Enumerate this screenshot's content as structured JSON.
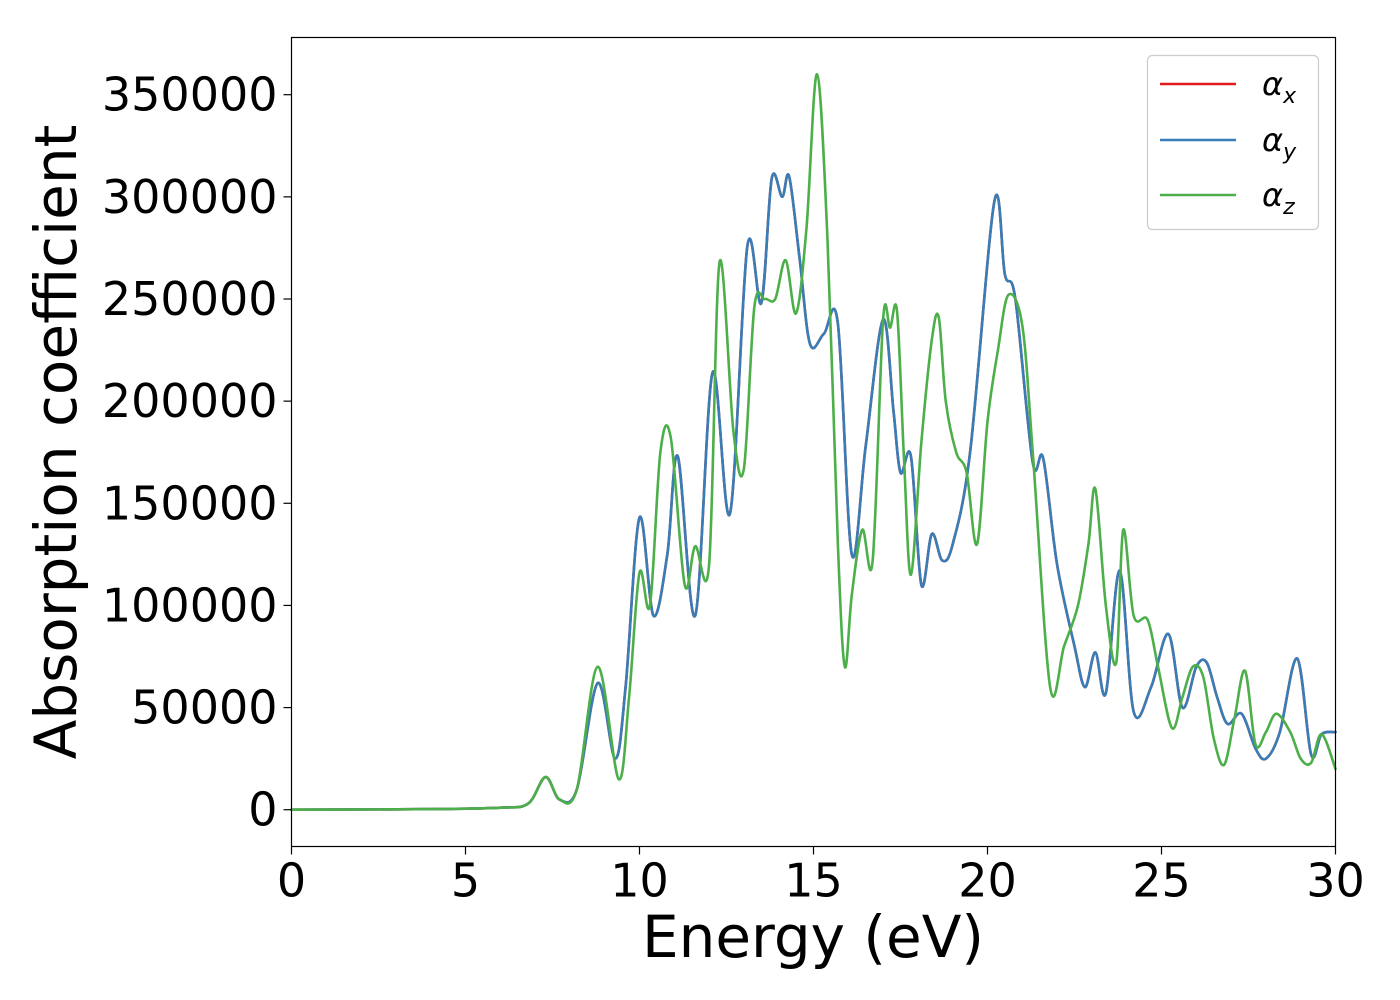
{
  "chart_data": {
    "type": "line",
    "title": "",
    "xlabel": "Energy (eV)",
    "ylabel": "Absorption coefficient",
    "xlim": [
      0,
      30
    ],
    "ylim": [
      -18000,
      378000
    ],
    "xticks": [
      0,
      5,
      10,
      15,
      20,
      25,
      30
    ],
    "xtick_labels": [
      "0",
      "5",
      "10",
      "15",
      "20",
      "25",
      "30"
    ],
    "yticks": [
      0,
      50000,
      100000,
      150000,
      200000,
      250000,
      300000,
      350000
    ],
    "ytick_labels": [
      "0",
      "50000",
      "100000",
      "150000",
      "200000",
      "250000",
      "300000",
      "350000"
    ],
    "grid": false,
    "legend_position": "top-right",
    "series": [
      {
        "name": "αx",
        "legend_base": "α",
        "legend_sub": "x",
        "color": "#e41a1c",
        "x": [
          0,
          4,
          6,
          6.8,
          7.3,
          7.7,
          8.2,
          8.8,
          9.3,
          9.6,
          10,
          10.4,
          10.8,
          11.1,
          11.6,
          12.1,
          12.6,
          13.1,
          13.5,
          13.8,
          14.1,
          14.3,
          14.6,
          14.9,
          15.3,
          15.7,
          16.1,
          16.5,
          17,
          17.3,
          17.5,
          17.8,
          18.1,
          18.4,
          18.7,
          19,
          19.5,
          20.2,
          20.5,
          20.8,
          21.3,
          21.6,
          22,
          22.5,
          22.8,
          23.1,
          23.4,
          23.8,
          24.2,
          24.7,
          25.2,
          25.6,
          26,
          26.3,
          26.6,
          26.9,
          27.3,
          27.7,
          28,
          28.4,
          28.9,
          29.3,
          29.6,
          30
        ],
        "values": [
          0,
          300,
          1000,
          3000,
          16000,
          5000,
          10000,
          62000,
          25000,
          60000,
          143000,
          95000,
          125000,
          173000,
          95000,
          214000,
          145000,
          276000,
          248000,
          309000,
          300000,
          310000,
          270000,
          228000,
          233000,
          238000,
          125000,
          178000,
          240000,
          195000,
          165000,
          173000,
          110000,
          135000,
          122000,
          130000,
          175000,
          298000,
          262000,
          250000,
          170000,
          172000,
          120000,
          80000,
          60000,
          77000,
          57000,
          117000,
          48000,
          60000,
          86000,
          50000,
          70000,
          72000,
          55000,
          42000,
          47000,
          30000,
          25000,
          38000,
          74000,
          27000,
          37000,
          38000
        ]
      },
      {
        "name": "αy",
        "legend_base": "α",
        "legend_sub": "y",
        "color": "#377eb8",
        "x": [
          0,
          4,
          6,
          6.8,
          7.3,
          7.7,
          8.2,
          8.8,
          9.3,
          9.6,
          10,
          10.4,
          10.8,
          11.1,
          11.6,
          12.1,
          12.6,
          13.1,
          13.5,
          13.8,
          14.1,
          14.3,
          14.6,
          14.9,
          15.3,
          15.7,
          16.1,
          16.5,
          17,
          17.3,
          17.5,
          17.8,
          18.1,
          18.4,
          18.7,
          19,
          19.5,
          20.2,
          20.5,
          20.8,
          21.3,
          21.6,
          22,
          22.5,
          22.8,
          23.1,
          23.4,
          23.8,
          24.2,
          24.7,
          25.2,
          25.6,
          26,
          26.3,
          26.6,
          26.9,
          27.3,
          27.7,
          28,
          28.4,
          28.9,
          29.3,
          29.6,
          30
        ],
        "values": [
          0,
          300,
          1000,
          3000,
          16000,
          5000,
          10000,
          62000,
          25000,
          60000,
          143000,
          95000,
          125000,
          173000,
          95000,
          214000,
          145000,
          276000,
          248000,
          309000,
          300000,
          310000,
          270000,
          228000,
          233000,
          238000,
          125000,
          178000,
          240000,
          195000,
          165000,
          173000,
          110000,
          135000,
          122000,
          130000,
          175000,
          298000,
          262000,
          250000,
          170000,
          172000,
          120000,
          80000,
          60000,
          77000,
          57000,
          117000,
          48000,
          60000,
          86000,
          50000,
          70000,
          72000,
          55000,
          42000,
          47000,
          30000,
          25000,
          38000,
          74000,
          27000,
          37000,
          38000
        ]
      },
      {
        "name": "αz",
        "legend_base": "α",
        "legend_sub": "z",
        "color": "#4daf4a",
        "x": [
          0,
          4,
          6,
          6.8,
          7.3,
          7.7,
          8.2,
          8.8,
          9.4,
          9.7,
          10,
          10.3,
          10.6,
          10.9,
          11.3,
          11.6,
          12,
          12.3,
          12.7,
          13,
          13.3,
          13.6,
          13.9,
          14.2,
          14.5,
          14.8,
          15.1,
          15.4,
          15.7,
          15.9,
          16.1,
          16.4,
          16.7,
          17,
          17.2,
          17.4,
          17.6,
          17.8,
          18.1,
          18.4,
          18.6,
          18.8,
          19.1,
          19.4,
          19.7,
          20,
          20.3,
          20.6,
          21,
          21.3,
          21.8,
          22.2,
          22.6,
          22.9,
          23.1,
          23.4,
          23.7,
          23.9,
          24.2,
          24.6,
          24.9,
          25.3,
          25.6,
          25.9,
          26.2,
          26.5,
          26.8,
          27.1,
          27.4,
          27.7,
          28,
          28.3,
          28.7,
          29,
          29.3,
          29.6,
          30
        ],
        "values": [
          0,
          300,
          1000,
          3000,
          16000,
          5000,
          10000,
          70000,
          15000,
          55000,
          116000,
          100000,
          175000,
          182000,
          110000,
          129000,
          120000,
          268000,
          185000,
          167000,
          246000,
          250000,
          250000,
          269000,
          243000,
          285000,
          360000,
          280000,
          130000,
          70000,
          105000,
          137000,
          122000,
          240000,
          236000,
          244000,
          172000,
          115000,
          180000,
          230000,
          241000,
          200000,
          175000,
          165000,
          130000,
          190000,
          225000,
          252000,
          237000,
          175000,
          60000,
          80000,
          100000,
          130000,
          157000,
          100000,
          72000,
          137000,
          95000,
          93000,
          70000,
          40000,
          55000,
          70000,
          65000,
          35000,
          22000,
          45000,
          68000,
          32000,
          38000,
          47000,
          38000,
          25000,
          23000,
          37000,
          20000
        ]
      }
    ]
  }
}
